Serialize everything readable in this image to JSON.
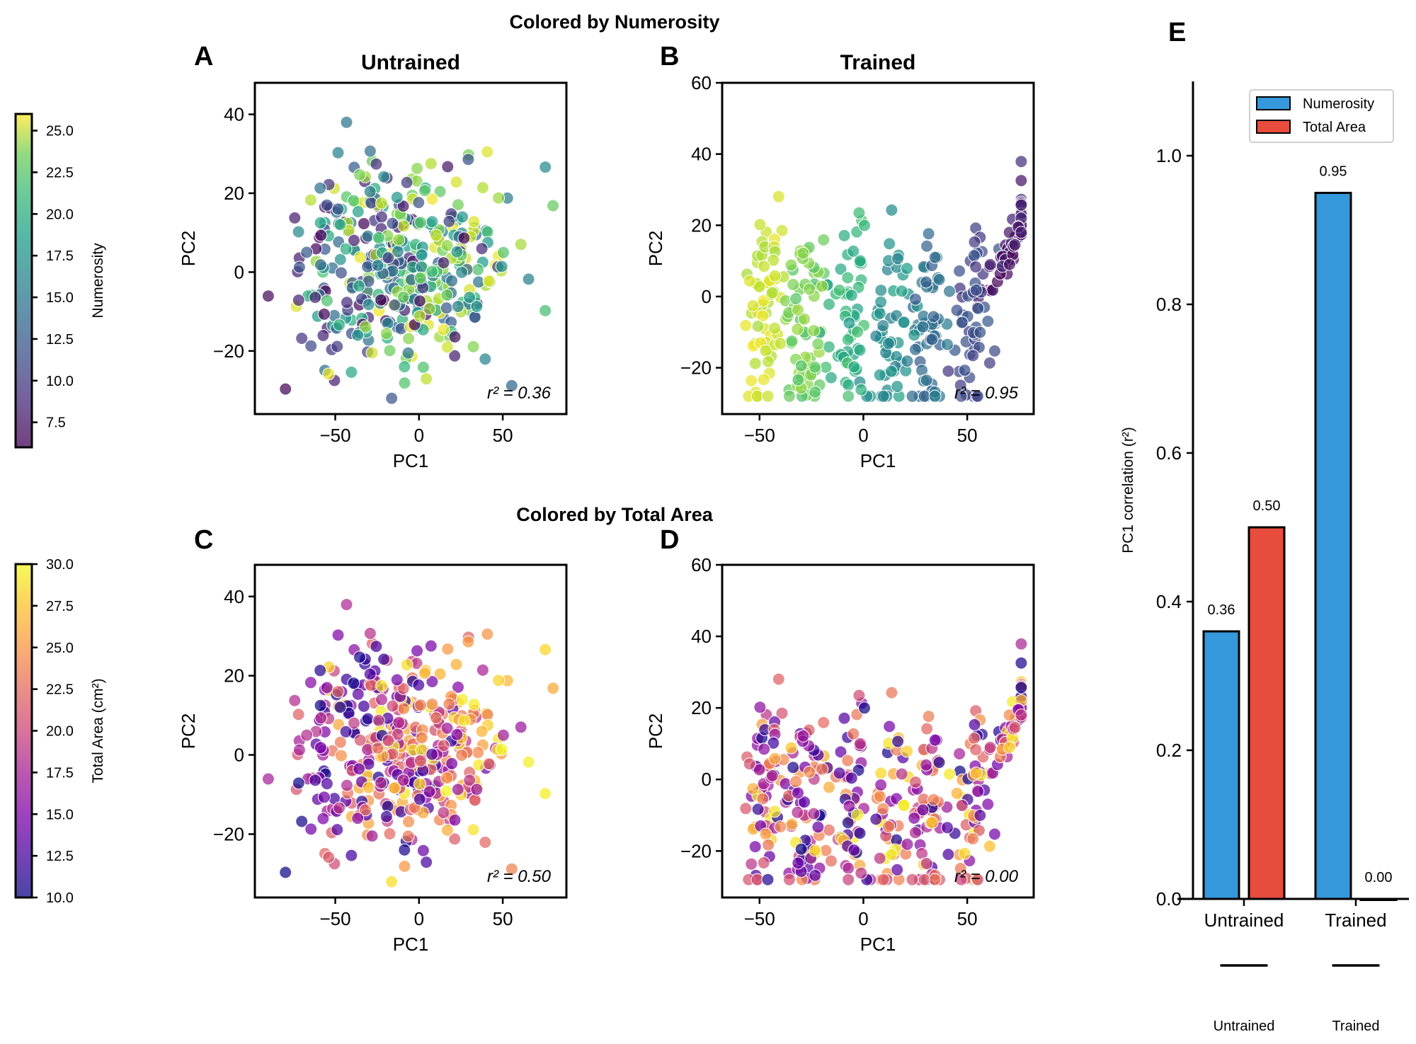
{
  "figure": {
    "suptitle_top": "Colored by Numerosity",
    "suptitle_bottom": "Colored by Total Area"
  },
  "colorbars": [
    {
      "id": "numerosity",
      "label": "Numerosity",
      "colormap": "viridis",
      "range": [
        6,
        26
      ],
      "ticks": [
        "7.5",
        "10.0",
        "12.5",
        "15.0",
        "17.5",
        "20.0",
        "22.5",
        "25.0"
      ],
      "tick_values": [
        7.5,
        10,
        12.5,
        15,
        17.5,
        20,
        22.5,
        25
      ]
    },
    {
      "id": "total_area",
      "label": "Total Area (cm²)",
      "colormap": "plasma",
      "range": [
        10,
        30
      ],
      "ticks": [
        "10.0",
        "12.5",
        "15.0",
        "17.5",
        "20.0",
        "22.5",
        "25.0",
        "27.5",
        "30.0"
      ],
      "tick_values": [
        10,
        12.5,
        15,
        17.5,
        20,
        22.5,
        25,
        27.5,
        30
      ]
    }
  ],
  "chart_data": [
    {
      "panel": "A",
      "type": "scatter",
      "title": "Untrained",
      "xlabel": "PC1",
      "ylabel": "PC2",
      "xlim": [
        -98,
        88
      ],
      "ylim": [
        -36,
        48
      ],
      "xticks": [
        -50,
        0,
        50
      ],
      "xtick_labels": [
        "−50",
        "0",
        "50"
      ],
      "yticks": [
        -20,
        0,
        20,
        40
      ],
      "ytick_labels": [
        "−20",
        "0",
        "20",
        "40"
      ],
      "color_by": "numerosity",
      "annotation": "r² = 0.36",
      "r2": 0.36,
      "description": "diffuse cloud; numerosity increases weakly along PC1",
      "n_points": 400
    },
    {
      "panel": "B",
      "type": "scatter",
      "title": "Trained",
      "xlabel": "PC1",
      "ylabel": "PC2",
      "xlim": [
        -68,
        82
      ],
      "ylim": [
        -33,
        60
      ],
      "xticks": [
        -50,
        0,
        50
      ],
      "xtick_labels": [
        "−50",
        "0",
        "50"
      ],
      "yticks": [
        -20,
        0,
        20,
        40,
        60
      ],
      "ytick_labels": [
        "−20",
        "0",
        "20",
        "40",
        "60"
      ],
      "color_by": "numerosity",
      "annotation": "r² = 0.95",
      "r2": 0.95,
      "description": "discrete diagonal bands; numerosity decreases along PC1",
      "n_points": 400
    },
    {
      "panel": "C",
      "type": "scatter",
      "title": "",
      "xlabel": "PC1",
      "ylabel": "PC2",
      "xlim": [
        -98,
        88
      ],
      "ylim": [
        -36,
        48
      ],
      "xticks": [
        -50,
        0,
        50
      ],
      "xtick_labels": [
        "−50",
        "0",
        "50"
      ],
      "yticks": [
        -20,
        0,
        20,
        40
      ],
      "ytick_labels": [
        "−20",
        "0",
        "20",
        "40"
      ],
      "color_by": "total_area",
      "annotation": "r² = 0.50",
      "r2": 0.5,
      "description": "same embedding as A colored by total area; area increases along PC1",
      "n_points": 400
    },
    {
      "panel": "D",
      "type": "scatter",
      "title": "",
      "xlabel": "PC1",
      "ylabel": "PC2",
      "xlim": [
        -68,
        82
      ],
      "ylim": [
        -33,
        60
      ],
      "xticks": [
        -50,
        0,
        50
      ],
      "xtick_labels": [
        "−50",
        "0",
        "50"
      ],
      "yticks": [
        -20,
        0,
        20,
        40,
        60
      ],
      "ytick_labels": [
        "−20",
        "0",
        "20",
        "40",
        "60"
      ],
      "color_by": "total_area",
      "annotation": "r² = 0.00",
      "r2": 0.0,
      "description": "same embedding as B colored by total area; no relation to PC1",
      "n_points": 400
    },
    {
      "panel": "E",
      "type": "bar",
      "title": "",
      "categories": [
        "Untrained",
        "Trained"
      ],
      "series": [
        {
          "name": "Numerosity",
          "values": [
            0.36,
            0.95
          ],
          "labels": [
            "0.36",
            "0.95"
          ],
          "color": "#3498db"
        },
        {
          "name": "Total Area",
          "values": [
            0.5,
            0.0
          ],
          "labels": [
            "0.50",
            "0.00"
          ],
          "color": "#e74c3c"
        }
      ],
      "xlabel": "",
      "ylabel": "PC1 correlation (r²)",
      "ylim": [
        0,
        1.1
      ],
      "yticks": [
        0,
        0.2,
        0.4,
        0.6,
        0.8,
        1.0
      ],
      "ytick_labels": [
        "0.0",
        "0.2",
        "0.4",
        "0.6",
        "0.8",
        "1.0"
      ],
      "legend": "top-right",
      "group_labels_below": [
        "Untrained",
        "Trained"
      ]
    }
  ]
}
